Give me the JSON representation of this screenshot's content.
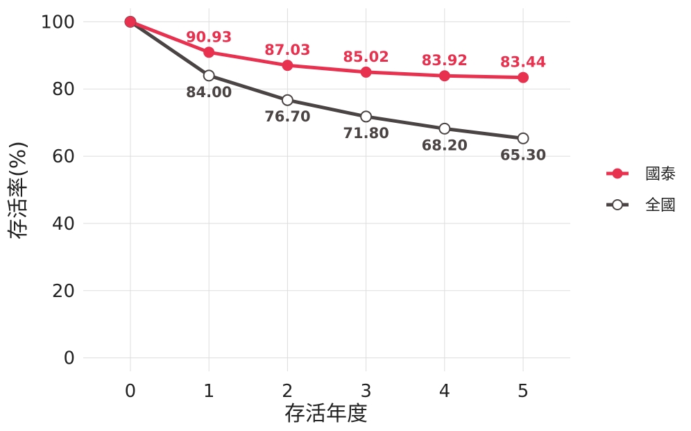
{
  "chart_data": {
    "type": "line",
    "title": "",
    "xlabel": "存活年度",
    "ylabel": "存活率(%)",
    "x": [
      0,
      1,
      2,
      3,
      4,
      5
    ],
    "x_tick_labels": [
      "0",
      "1",
      "2",
      "3",
      "4",
      "5"
    ],
    "xlim": [
      -0.6,
      5.6
    ],
    "ylim": [
      -4,
      104
    ],
    "y_ticks": [
      0,
      20,
      40,
      60,
      80,
      100
    ],
    "y_tick_labels": [
      "0",
      "20",
      "40",
      "60",
      "80",
      "100"
    ],
    "grid": true,
    "legend_position": "right",
    "series": [
      {
        "name": "國泰",
        "color": "#e8314f",
        "marker": "filled-circle",
        "values": [
          100,
          90.93,
          87.03,
          85.02,
          83.92,
          83.44
        ],
        "data_labels": [
          "",
          "90.93",
          "87.03",
          "85.02",
          "83.92",
          "83.44"
        ],
        "label_position": "above"
      },
      {
        "name": "全國",
        "color": "#4a4444",
        "marker": "open-circle",
        "values": [
          100,
          84.0,
          76.7,
          71.8,
          68.2,
          65.3
        ],
        "data_labels": [
          "",
          "84.00",
          "76.70",
          "71.80",
          "68.20",
          "65.30"
        ],
        "label_position": "below"
      }
    ]
  }
}
